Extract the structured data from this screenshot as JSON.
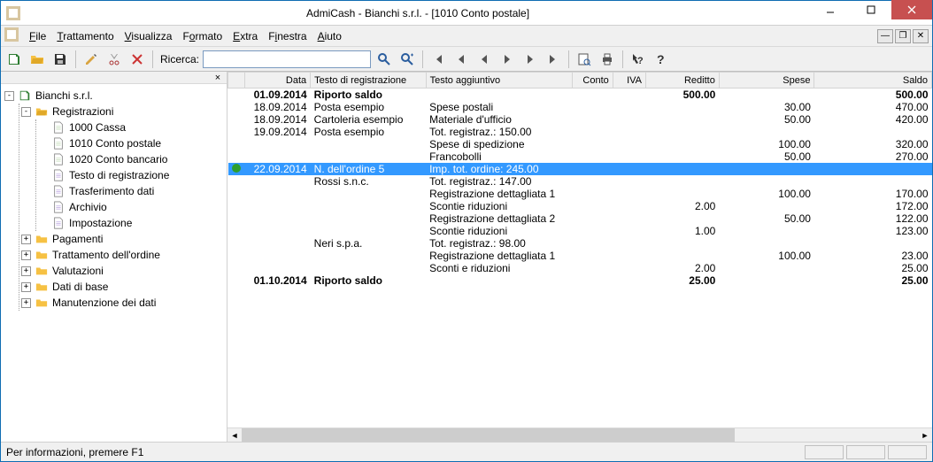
{
  "window": {
    "title": "AdmiCash - Bianchi s.r.l. - [1010 Conto postale]",
    "statusbar": "Per informazioni, premere F1"
  },
  "menu": {
    "items": [
      {
        "label": "File",
        "u": "F"
      },
      {
        "label": "Trattamento",
        "u": "T"
      },
      {
        "label": "Visualizza",
        "u": "V"
      },
      {
        "label": "Formato",
        "u": "o"
      },
      {
        "label": "Extra",
        "u": "E"
      },
      {
        "label": "Finestra",
        "u": "i"
      },
      {
        "label": "Aiuto",
        "u": "A"
      }
    ]
  },
  "toolbar": {
    "search_label": "Ricerca:",
    "search_value": ""
  },
  "tree": {
    "root": "Bianchi s.r.l.",
    "registrazioni": "Registrazioni",
    "items_reg": [
      "1000 Cassa",
      "1010 Conto postale",
      "1020 Conto bancario",
      "Testo di registrazione",
      "Trasferimento dati",
      "Archivio",
      "Impostazione"
    ],
    "others": [
      "Pagamenti",
      "Trattamento dell'ordine",
      "Valutazioni",
      "Dati di base",
      "Manutenzione dei dati"
    ]
  },
  "grid": {
    "columns": {
      "marker": "",
      "data": "Data",
      "testo": "Testo di registrazione",
      "agg": "Testo aggiuntivo",
      "conto": "Conto",
      "iva": "IVA",
      "reditto": "Reditto",
      "spese": "Spese",
      "saldo": "Saldo"
    },
    "rows": [
      {
        "bold": true,
        "data": "01.09.2014",
        "testo": "Riporto saldo",
        "agg": "",
        "reditto": "500.00",
        "spese": "",
        "saldo": "500.00"
      },
      {
        "data": "18.09.2014",
        "testo": "Posta esempio",
        "agg": "Spese postali",
        "reditto": "",
        "spese": "30.00",
        "saldo": "470.00"
      },
      {
        "data": "18.09.2014",
        "testo": "Cartoleria esempio",
        "agg": "Materiale d'ufficio",
        "reditto": "",
        "spese": "50.00",
        "saldo": "420.00"
      },
      {
        "data": "19.09.2014",
        "testo": "Posta esempio",
        "agg": "Tot. registraz.: 150.00",
        "reditto": "",
        "spese": "",
        "saldo": ""
      },
      {
        "data": "",
        "testo": "",
        "agg": "Spese di spedizione",
        "reditto": "",
        "spese": "100.00",
        "saldo": "320.00"
      },
      {
        "data": "",
        "testo": "",
        "agg": "Francobolli",
        "reditto": "",
        "spese": "50.00",
        "saldo": "270.00"
      },
      {
        "selected": true,
        "marker": true,
        "data": "22.09.2014",
        "testo": "N. dell'ordine 5",
        "agg": "Imp. tot. ordine: 245.00",
        "reditto": "",
        "spese": "",
        "saldo": ""
      },
      {
        "data": "",
        "testo": "Rossi s.n.c.",
        "agg": "Tot. registraz.: 147.00",
        "reditto": "",
        "spese": "",
        "saldo": ""
      },
      {
        "data": "",
        "testo": "",
        "agg": "Registrazione dettagliata 1",
        "reditto": "",
        "spese": "100.00",
        "saldo": "170.00"
      },
      {
        "data": "",
        "testo": "",
        "agg": "Scontie riduzioni",
        "reditto": "2.00",
        "spese": "",
        "saldo": "172.00"
      },
      {
        "data": "",
        "testo": "",
        "agg": "Registrazione dettagliata 2",
        "reditto": "",
        "spese": "50.00",
        "saldo": "122.00"
      },
      {
        "data": "",
        "testo": "",
        "agg": "Scontie riduzioni",
        "reditto": "1.00",
        "spese": "",
        "saldo": "123.00"
      },
      {
        "data": "",
        "testo": "Neri s.p.a.",
        "agg": "Tot. registraz.: 98.00",
        "reditto": "",
        "spese": "",
        "saldo": ""
      },
      {
        "data": "",
        "testo": "",
        "agg": "Registrazione dettagliata 1",
        "reditto": "",
        "spese": "100.00",
        "saldo": "23.00"
      },
      {
        "data": "",
        "testo": "",
        "agg": "Sconti e riduzioni",
        "reditto": "2.00",
        "spese": "",
        "saldo": "25.00"
      },
      {
        "bold": true,
        "data": "01.10.2014",
        "testo": "Riporto saldo",
        "agg": "",
        "reditto": "25.00",
        "spese": "",
        "saldo": "25.00"
      }
    ]
  },
  "colors": {
    "selection": "#3399ff",
    "titlebar_close": "#c75050"
  }
}
